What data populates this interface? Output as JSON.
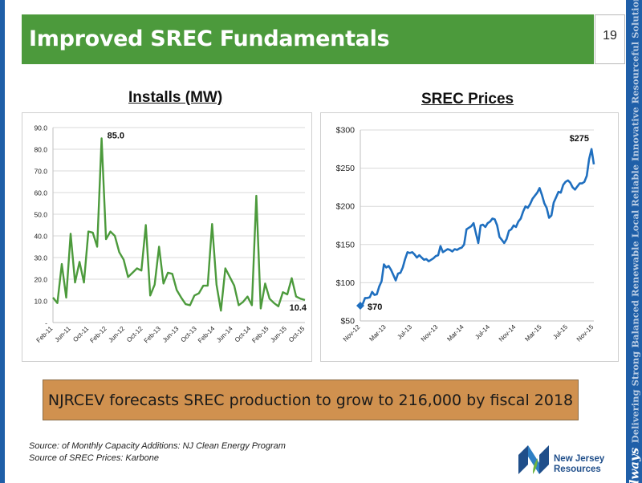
{
  "header": {
    "title": "Improved SREC Fundamentals",
    "page_number": "19"
  },
  "side_banner": {
    "word": "Always",
    "tagline": "Delivering Strong Balanced Renewable Local Reliable Innovative Resourceful Solutions"
  },
  "callout": {
    "text": "NJRCEV forecasts SREC production to grow to 216,000 by fiscal 2018"
  },
  "sources": [
    "Source: of Monthly Capacity Additions: NJ Clean Energy Program",
    "Source of SREC Prices: Karbone"
  ],
  "logo": {
    "line1": "New Jersey",
    "line2": "Resources"
  },
  "colors": {
    "title_bar": "#4c9a3c",
    "side_strip": "#1f5fa8",
    "installs_line": "#4c9a3c",
    "prices_line": "#1f6fbf",
    "callout": "#d0914f"
  },
  "chart_data": [
    {
      "type": "line",
      "title": "Installs (MW)",
      "xlabel": "",
      "ylabel": "",
      "ylim": [
        0,
        90
      ],
      "y_ticks": [
        "-",
        "10.0",
        "20.0",
        "30.0",
        "40.0",
        "50.0",
        "60.0",
        "70.0",
        "80.0",
        "90.0"
      ],
      "x_tick_labels": [
        "Feb-11",
        "Jun-11",
        "Oct-11",
        "Feb-12",
        "Jun-12",
        "Oct-12",
        "Feb-13",
        "Jun-13",
        "Oct-13",
        "Feb-14",
        "Jun-14",
        "Oct-14",
        "Feb-15",
        "Jun-15",
        "Oct-15"
      ],
      "grid": true,
      "series": [
        {
          "values": [
            11.5,
            9,
            27,
            11.5,
            41,
            18.5,
            28,
            18.5,
            42,
            41.5,
            35,
            85,
            38.5,
            42,
            40,
            32.5,
            29,
            21,
            23,
            25,
            24,
            45,
            12.5,
            17.5,
            35,
            18,
            23,
            22.5,
            15,
            11.5,
            8.5,
            8,
            12.5,
            13.5,
            17,
            17,
            45.5,
            17.5,
            5.5,
            25,
            21,
            17,
            8,
            9.5,
            12,
            8,
            58.5,
            6.5,
            18,
            11,
            9,
            7.5,
            14,
            13,
            20.5,
            12,
            11,
            10.4
          ]
        }
      ],
      "annotations": [
        {
          "label": "85.0",
          "index": 11,
          "value": 85.0
        },
        {
          "label": "10.4",
          "index": 57,
          "value": 10.4
        }
      ]
    },
    {
      "type": "line",
      "title": "SREC Prices",
      "xlabel": "",
      "ylabel": "",
      "ylim": [
        50,
        300
      ],
      "y_ticks": [
        "$50",
        "$100",
        "$150",
        "$200",
        "$250",
        "$300"
      ],
      "x_tick_labels": [
        "Nov-12",
        "Mar-13",
        "Jul-13",
        "Nov-13",
        "Mar-14",
        "Jul-14",
        "Nov-14",
        "Mar-15",
        "Jul-15",
        "Nov-15"
      ],
      "grid": true,
      "series": [
        {
          "values": [
            70,
            72,
            80,
            80,
            81,
            88,
            84,
            85,
            95,
            102,
            124,
            120,
            122,
            117,
            110,
            103,
            112,
            113,
            120,
            131,
            140,
            139,
            140,
            137,
            133,
            136,
            133,
            130,
            131,
            128,
            130,
            132,
            135,
            136,
            148,
            140,
            142,
            144,
            143,
            141,
            144,
            143,
            145,
            146,
            150,
            170,
            172,
            174,
            178,
            165,
            152,
            175,
            176,
            173,
            178,
            180,
            184,
            183,
            175,
            160,
            156,
            152,
            157,
            168,
            170,
            175,
            173,
            180,
            184,
            193,
            200,
            198,
            203,
            210,
            214,
            218,
            224,
            215,
            204,
            198,
            185,
            188,
            205,
            212,
            219,
            218,
            228,
            232,
            234,
            231,
            225,
            222,
            226,
            230,
            230,
            232,
            240,
            262,
            275,
            255
          ]
        }
      ],
      "annotations": [
        {
          "label": "$70",
          "index": 0,
          "value": 70
        },
        {
          "label": "$275",
          "index": 98,
          "value": 275
        }
      ]
    }
  ]
}
